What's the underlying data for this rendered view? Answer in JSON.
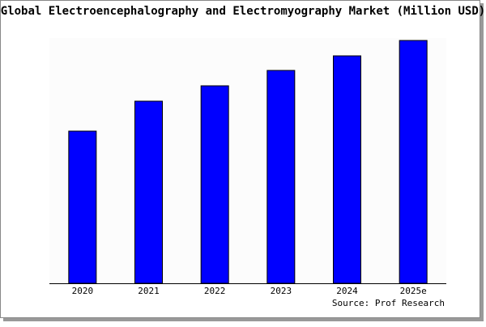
{
  "chart_data": {
    "type": "bar",
    "title": "Global Electroencephalography and Electromyography Market (Million USD)",
    "categories": [
      "2020",
      "2021",
      "2022",
      "2023",
      "2024",
      "2025e"
    ],
    "values": [
      188,
      225,
      244,
      263,
      281,
      300
    ],
    "color": "#0000ff",
    "ylim": [
      0,
      300
    ],
    "source": "Source: Prof Research"
  }
}
